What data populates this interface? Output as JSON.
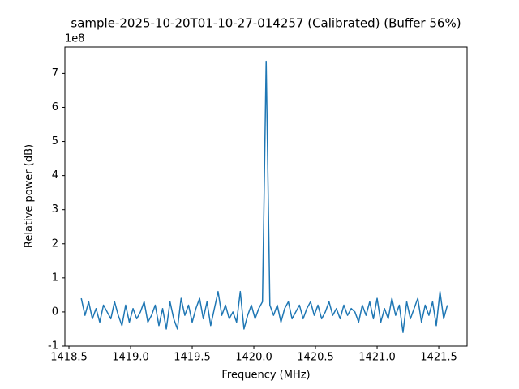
{
  "chart_data": {
    "type": "line",
    "title": "sample-2025-10-20T01-10-27-014257 (Calibrated) (Buffer 56%)",
    "xlabel": "Frequency (MHz)",
    "ylabel": "Relative power (dB)",
    "y_offset_label": "1e8",
    "color": "#1f77b4",
    "x": [
      1418.6,
      1418.63,
      1418.66,
      1418.69,
      1418.72,
      1418.75,
      1418.78,
      1418.81,
      1418.84,
      1418.87,
      1418.9,
      1418.93,
      1418.96,
      1418.99,
      1419.02,
      1419.05,
      1419.08,
      1419.11,
      1419.14,
      1419.17,
      1419.2,
      1419.23,
      1419.26,
      1419.29,
      1419.32,
      1419.35,
      1419.38,
      1419.41,
      1419.44,
      1419.47,
      1419.5,
      1419.53,
      1419.56,
      1419.59,
      1419.62,
      1419.65,
      1419.68,
      1419.71,
      1419.74,
      1419.77,
      1419.8,
      1419.83,
      1419.86,
      1419.89,
      1419.92,
      1419.95,
      1419.98,
      1420.01,
      1420.04,
      1420.07,
      1420.1,
      1420.13,
      1420.16,
      1420.19,
      1420.22,
      1420.25,
      1420.28,
      1420.31,
      1420.34,
      1420.37,
      1420.4,
      1420.43,
      1420.46,
      1420.49,
      1420.52,
      1420.55,
      1420.58,
      1420.61,
      1420.64,
      1420.67,
      1420.7,
      1420.73,
      1420.76,
      1420.79,
      1420.82,
      1420.85,
      1420.88,
      1420.91,
      1420.94,
      1420.97,
      1421.0,
      1421.03,
      1421.06,
      1421.09,
      1421.12,
      1421.15,
      1421.18,
      1421.21,
      1421.24,
      1421.27,
      1421.3,
      1421.33,
      1421.36,
      1421.39,
      1421.42,
      1421.45,
      1421.48,
      1421.51,
      1421.54,
      1421.57
    ],
    "values": [
      0.4,
      -0.1,
      0.3,
      -0.2,
      0.1,
      -0.3,
      0.2,
      0.0,
      -0.2,
      0.3,
      -0.1,
      -0.4,
      0.2,
      -0.3,
      0.1,
      -0.2,
      0.0,
      0.3,
      -0.3,
      -0.1,
      0.2,
      -0.4,
      0.1,
      -0.5,
      0.3,
      -0.2,
      -0.5,
      0.4,
      -0.1,
      0.2,
      -0.3,
      0.1,
      0.4,
      -0.2,
      0.3,
      -0.4,
      0.1,
      0.6,
      -0.1,
      0.2,
      -0.2,
      0.0,
      -0.3,
      0.6,
      -0.5,
      -0.1,
      0.2,
      -0.2,
      0.1,
      0.3,
      7.35,
      0.2,
      -0.1,
      0.2,
      -0.3,
      0.1,
      0.3,
      -0.2,
      0.0,
      0.2,
      -0.2,
      0.1,
      0.3,
      -0.1,
      0.2,
      -0.2,
      0.0,
      0.3,
      -0.1,
      0.1,
      -0.2,
      0.2,
      -0.1,
      0.1,
      0.0,
      -0.3,
      0.2,
      -0.1,
      0.3,
      -0.2,
      0.4,
      -0.3,
      0.1,
      -0.2,
      0.4,
      -0.1,
      0.2,
      -0.6,
      0.3,
      -0.2,
      0.1,
      0.4,
      -0.3,
      0.2,
      -0.1,
      0.3,
      -0.4,
      0.6,
      -0.2,
      0.2
    ],
    "xlim": [
      1418.467,
      1421.73
    ],
    "ylim": [
      -1,
      7.77
    ],
    "xticks": [
      1418.5,
      {
        "value": 1419,
        "label": "1419.0"
      },
      1419.5,
      {
        "value": 1420,
        "label": "1420.0"
      },
      1420.5,
      {
        "value": 1421,
        "label": "1421.0"
      },
      1421.5
    ],
    "yticks": [
      -1,
      0,
      1,
      2,
      3,
      4,
      5,
      6,
      7
    ],
    "grid": false
  }
}
